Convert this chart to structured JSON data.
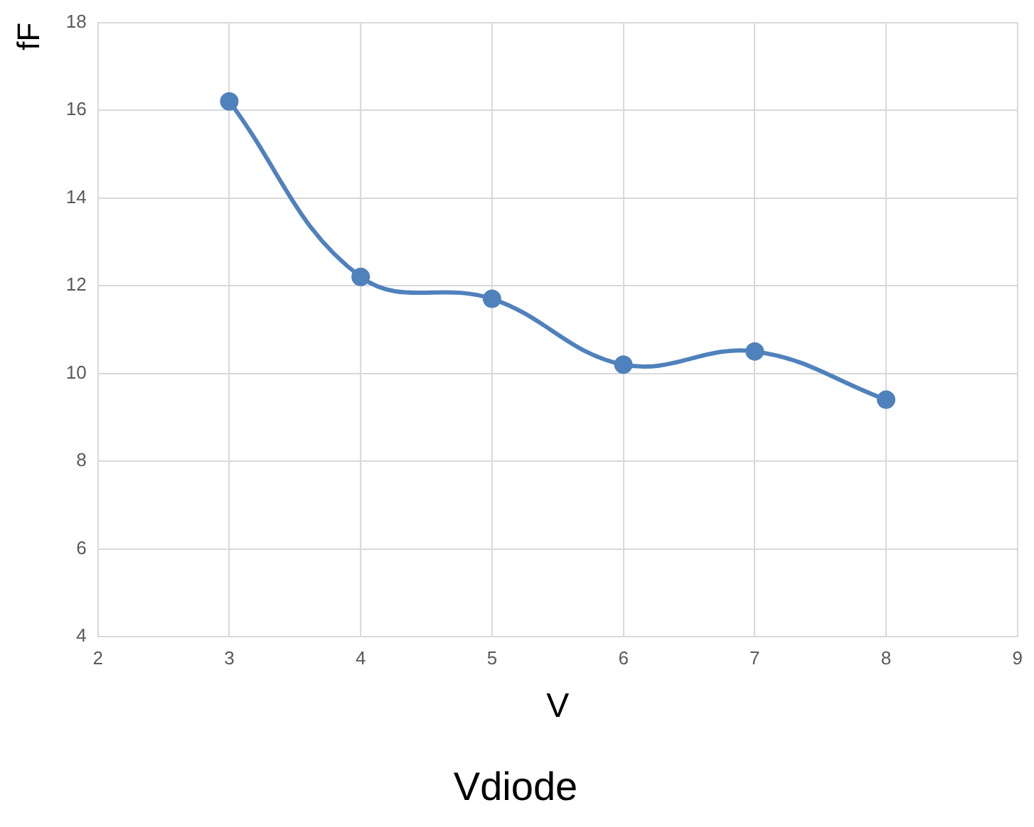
{
  "chart_data": {
    "type": "line",
    "title": "Vdiode",
    "xlabel": "V",
    "ylabel": "fF",
    "x": [
      3,
      4,
      5,
      6,
      7,
      8
    ],
    "series": [
      {
        "color": "#4f81bd",
        "values": [
          16.2,
          12.2,
          11.7,
          10.2,
          10.5,
          9.4
        ]
      }
    ],
    "xlim": [
      2,
      9
    ],
    "xticks": [
      2,
      3,
      4,
      5,
      6,
      7,
      8,
      9
    ],
    "ylim": [
      4,
      18
    ],
    "yticks": [
      4,
      6,
      8,
      10,
      12,
      14,
      16,
      18
    ],
    "grid": true,
    "legend": false,
    "marker": "circle",
    "line_style": "solid"
  }
}
